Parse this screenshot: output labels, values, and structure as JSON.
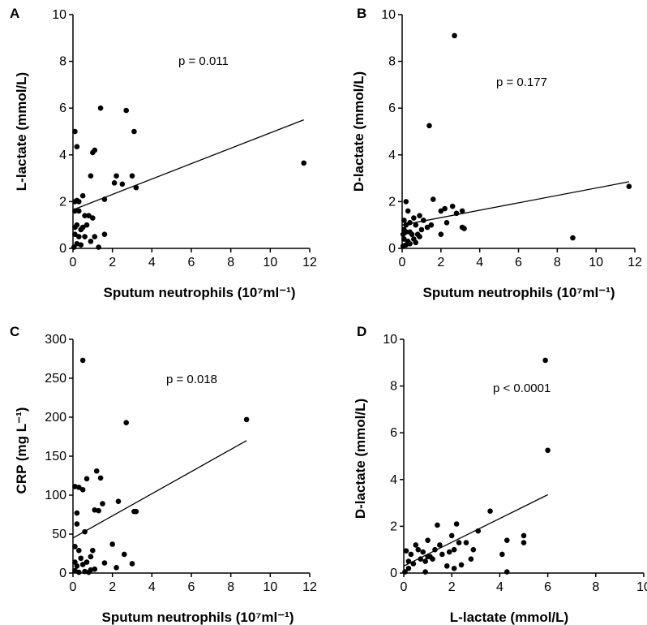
{
  "chart_data": [
    {
      "panel": "A",
      "type": "scatter",
      "xlabel": "Sputum neutrophils (10⁷ml⁻¹)",
      "ylabel": "L-lactate (mmol/L)",
      "xlim": [
        0,
        12
      ],
      "ylim": [
        0,
        10
      ],
      "xticks": [
        0,
        2,
        4,
        6,
        8,
        10,
        12
      ],
      "yticks": [
        0,
        2,
        4,
        6,
        8,
        10
      ],
      "annotation": "p = 0.011",
      "fit_line": {
        "x": [
          0,
          11.7
        ],
        "y": [
          1.65,
          5.5
        ]
      },
      "points": [
        [
          0.1,
          5.0
        ],
        [
          0.2,
          4.35
        ],
        [
          1.4,
          6.0
        ],
        [
          2.7,
          5.9
        ],
        [
          3.1,
          5.0
        ],
        [
          1.1,
          4.2
        ],
        [
          1.0,
          4.1
        ],
        [
          0.9,
          3.1
        ],
        [
          2.2,
          3.1
        ],
        [
          2.1,
          2.8
        ],
        [
          2.5,
          2.75
        ],
        [
          3.0,
          3.1
        ],
        [
          3.2,
          2.6
        ],
        [
          11.7,
          3.65
        ],
        [
          0.1,
          2.0
        ],
        [
          0.2,
          2.05
        ],
        [
          0.3,
          2.0
        ],
        [
          0.5,
          2.25
        ],
        [
          1.6,
          2.1
        ],
        [
          0.1,
          1.6
        ],
        [
          0.3,
          1.6
        ],
        [
          0.6,
          1.4
        ],
        [
          0.8,
          1.4
        ],
        [
          1.0,
          1.3
        ],
        [
          0.1,
          0.9
        ],
        [
          0.2,
          1.0
        ],
        [
          0.5,
          0.9
        ],
        [
          0.7,
          1.0
        ],
        [
          0.1,
          0.6
        ],
        [
          0.3,
          0.5
        ],
        [
          0.6,
          0.5
        ],
        [
          0.9,
          0.3
        ],
        [
          0.2,
          0.2
        ],
        [
          0.4,
          0.15
        ],
        [
          1.3,
          0.05
        ],
        [
          1.1,
          0.5
        ],
        [
          1.6,
          0.6
        ],
        [
          0.05,
          0.05
        ],
        [
          0.4,
          0.8
        ]
      ]
    },
    {
      "panel": "B",
      "type": "scatter",
      "xlabel": "Sputum neutrophils (10⁷ml⁻¹)",
      "ylabel": "D-lactate (mmol/L)",
      "xlim": [
        0,
        12
      ],
      "ylim": [
        0,
        10
      ],
      "xticks": [
        0,
        2,
        4,
        6,
        8,
        10,
        12
      ],
      "yticks": [
        0,
        2,
        4,
        6,
        8,
        10
      ],
      "annotation": "p = 0.177",
      "fit_line": {
        "x": [
          0,
          11.7
        ],
        "y": [
          1.0,
          2.85
        ]
      },
      "points": [
        [
          2.7,
          9.1
        ],
        [
          1.4,
          5.25
        ],
        [
          11.7,
          2.65
        ],
        [
          8.8,
          0.45
        ],
        [
          0.2,
          2.0
        ],
        [
          1.6,
          2.1
        ],
        [
          2.6,
          1.8
        ],
        [
          0.3,
          1.6
        ],
        [
          0.6,
          1.3
        ],
        [
          0.9,
          1.4
        ],
        [
          1.1,
          1.2
        ],
        [
          2.0,
          1.6
        ],
        [
          2.2,
          1.7
        ],
        [
          2.8,
          1.5
        ],
        [
          3.1,
          1.6
        ],
        [
          0.1,
          1.2
        ],
        [
          0.2,
          1.0
        ],
        [
          0.4,
          1.1
        ],
        [
          0.7,
          1.0
        ],
        [
          1.3,
          0.9
        ],
        [
          2.3,
          1.1
        ],
        [
          3.2,
          0.85
        ],
        [
          3.1,
          0.9
        ],
        [
          2.0,
          0.6
        ],
        [
          0.1,
          0.8
        ],
        [
          0.2,
          0.7
        ],
        [
          0.4,
          0.7
        ],
        [
          0.5,
          0.6
        ],
        [
          0.8,
          0.6
        ],
        [
          0.1,
          0.4
        ],
        [
          0.3,
          0.3
        ],
        [
          0.6,
          0.4
        ],
        [
          0.9,
          0.5
        ],
        [
          0.05,
          0.1
        ],
        [
          0.2,
          0.15
        ],
        [
          0.4,
          0.2
        ],
        [
          0.7,
          0.25
        ],
        [
          1.0,
          0.8
        ],
        [
          1.5,
          1.0
        ],
        [
          0.05,
          0.6
        ]
      ]
    },
    {
      "panel": "C",
      "type": "scatter",
      "xlabel": "Sputum neutrophils (10⁷ml⁻¹)",
      "ylabel": "CRP (mg L⁻¹)",
      "xlim": [
        0,
        12
      ],
      "ylim": [
        0,
        300
      ],
      "xticks": [
        0,
        2,
        4,
        6,
        8,
        10,
        12
      ],
      "yticks": [
        0,
        50,
        100,
        150,
        200,
        250,
        300
      ],
      "annotation": "p = 0.018",
      "fit_line": {
        "x": [
          0,
          8.8
        ],
        "y": [
          45,
          170
        ]
      },
      "points": [
        [
          0.5,
          273
        ],
        [
          2.7,
          193
        ],
        [
          8.8,
          197
        ],
        [
          1.2,
          131
        ],
        [
          0.1,
          111
        ],
        [
          0.3,
          110
        ],
        [
          0.5,
          107
        ],
        [
          0.7,
          121
        ],
        [
          1.4,
          122
        ],
        [
          1.5,
          89
        ],
        [
          2.3,
          92
        ],
        [
          1.1,
          81
        ],
        [
          1.3,
          80
        ],
        [
          3.1,
          79
        ],
        [
          3.2,
          79
        ],
        [
          0.2,
          77
        ],
        [
          0.2,
          63
        ],
        [
          0.6,
          53
        ],
        [
          0.1,
          34
        ],
        [
          0.3,
          29
        ],
        [
          0.4,
          19
        ],
        [
          0.9,
          21
        ],
        [
          1.0,
          29
        ],
        [
          2.0,
          37
        ],
        [
          2.6,
          24
        ],
        [
          3.0,
          12
        ],
        [
          0.1,
          14
        ],
        [
          0.2,
          9
        ],
        [
          0.5,
          11
        ],
        [
          0.7,
          14
        ],
        [
          1.6,
          13
        ],
        [
          2.2,
          7
        ],
        [
          0.1,
          3
        ],
        [
          0.3,
          1
        ],
        [
          0.6,
          2
        ],
        [
          0.8,
          1
        ],
        [
          0.9,
          4
        ],
        [
          1.1,
          5
        ]
      ]
    },
    {
      "panel": "D",
      "type": "scatter",
      "xlabel": "L-lactate (mmol/L)",
      "ylabel": "D-lactate (mmol/L)",
      "xlim": [
        0,
        10
      ],
      "ylim": [
        0,
        10
      ],
      "xticks": [
        0,
        2,
        4,
        6,
        8,
        10
      ],
      "yticks": [
        0,
        2,
        4,
        6,
        8,
        10
      ],
      "annotation": "p < 0.0001",
      "fit_line": {
        "x": [
          0,
          6.0
        ],
        "y": [
          0.3,
          3.35
        ]
      },
      "points": [
        [
          5.9,
          9.1
        ],
        [
          6.0,
          5.25
        ],
        [
          3.6,
          2.65
        ],
        [
          1.4,
          2.05
        ],
        [
          2.2,
          2.1
        ],
        [
          4.3,
          1.4
        ],
        [
          5.0,
          1.6
        ],
        [
          5.0,
          1.3
        ],
        [
          2.0,
          1.6
        ],
        [
          2.6,
          1.3
        ],
        [
          2.9,
          1.0
        ],
        [
          3.1,
          1.8
        ],
        [
          0.1,
          0.95
        ],
        [
          0.3,
          0.8
        ],
        [
          0.5,
          1.2
        ],
        [
          0.6,
          1.0
        ],
        [
          0.8,
          0.9
        ],
        [
          1.0,
          1.4
        ],
        [
          1.1,
          0.7
        ],
        [
          1.3,
          1.0
        ],
        [
          1.5,
          1.2
        ],
        [
          1.6,
          0.8
        ],
        [
          1.9,
          0.9
        ],
        [
          2.1,
          1.0
        ],
        [
          2.3,
          1.3
        ],
        [
          2.8,
          0.6
        ],
        [
          0.2,
          0.5
        ],
        [
          0.4,
          0.4
        ],
        [
          0.7,
          0.6
        ],
        [
          0.9,
          0.5
        ],
        [
          1.2,
          0.6
        ],
        [
          1.8,
          0.3
        ],
        [
          2.1,
          0.2
        ],
        [
          4.1,
          0.8
        ],
        [
          4.3,
          0.05
        ],
        [
          0.05,
          0.05
        ],
        [
          0.9,
          0.05
        ],
        [
          0.2,
          0.2
        ],
        [
          2.4,
          0.35
        ],
        [
          1.0,
          0.7
        ]
      ]
    }
  ]
}
